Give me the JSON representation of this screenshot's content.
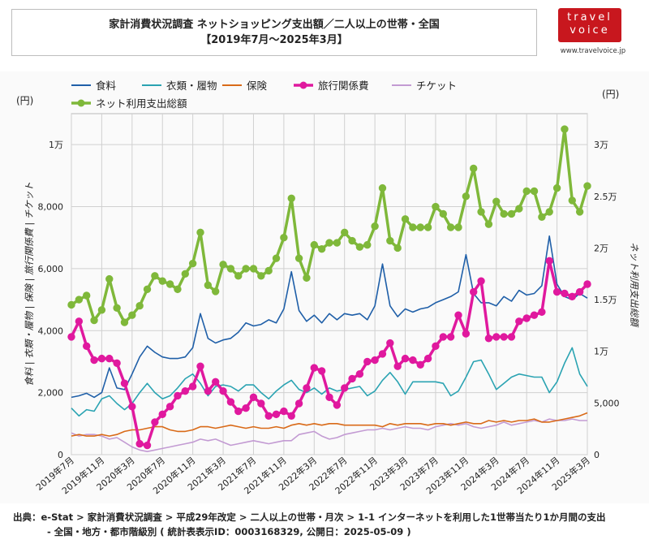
{
  "header": {
    "title_line1": "家計消費状況調査 ネットショッピング支出額／二人以上の世帯・全国",
    "title_line2": "【2019年7月～2025年3月】"
  },
  "logo": {
    "line1": "travel",
    "line2": "voice",
    "url": "www.travelvoice.jp"
  },
  "footer": {
    "source_line1": "出典：e-Stat > 家計消費状況調査 > 平成29年改定 > 二人以上の世帯・月次 > 1-1 インターネットを利用した1世帯当たり1か月間の支出",
    "source_line2": "- 全国・地方・都市階級別 ( 統計表表示ID：0003168329, 公開日：2025-05-09 )"
  },
  "colors": {
    "food": "#1f5fa8",
    "clothing": "#2aa3b2",
    "insurance": "#d96a18",
    "travel": "#e0199e",
    "ticket": "#c39bd3",
    "net_total": "#7fb83a",
    "grid": "#d0d0d0"
  },
  "chart_data": {
    "type": "line",
    "x_start": "2019-07",
    "x_tick_labels": [
      "2019年7月",
      "2019年11月",
      "2020年3月",
      "2020年7月",
      "2020年11月",
      "2021年3月",
      "2021年7月",
      "2021年11月",
      "2022年3月",
      "2022年7月",
      "2022年11月",
      "2023年3月",
      "2023年7月",
      "2023年11月",
      "2024年3月",
      "2024年7月",
      "2024年11月",
      "2025年3月"
    ],
    "y_left": {
      "label": "食料 | 衣類・履物 | 保険 | 旅行関係費 | チケット",
      "unit": "(円)",
      "ylim": [
        0,
        11000
      ],
      "ticks": [
        0,
        2000,
        4000,
        6000,
        8000,
        10000
      ],
      "tick_labels": [
        "0",
        "2,000",
        "4,000",
        "6,000",
        "8,000",
        "1万"
      ]
    },
    "y_right": {
      "label": "ネット利用支出総額",
      "unit": "(円)",
      "ylim": [
        0,
        33000
      ],
      "ticks": [
        0,
        5000,
        10000,
        15000,
        20000,
        25000,
        30000
      ],
      "tick_labels": [
        "0",
        "5,000",
        "1万",
        "1.5万",
        "2万",
        "2.5万",
        "3万"
      ]
    },
    "grid": true,
    "legend_position": "top",
    "series": [
      {
        "name": "食料",
        "key": "food",
        "axis": "left",
        "markers": false,
        "values": [
          1850,
          1900,
          1980,
          1850,
          2000,
          2800,
          2150,
          2100,
          2600,
          3150,
          3500,
          3300,
          3150,
          3100,
          3100,
          3150,
          3450,
          4550,
          3750,
          3600,
          3700,
          3750,
          3950,
          4250,
          4150,
          4200,
          4350,
          4250,
          4700,
          5900,
          4650,
          4300,
          4500,
          4250,
          4550,
          4350,
          4550,
          4500,
          4550,
          4350,
          4800,
          6150,
          4800,
          4450,
          4700,
          4600,
          4700,
          4750,
          4900,
          5000,
          5100,
          5250,
          6450,
          5200,
          4900,
          4900,
          4800,
          5100,
          4950,
          5300,
          5150,
          5200,
          5450,
          7050,
          5500,
          5100,
          5000,
          5200,
          5050
        ]
      },
      {
        "name": "衣類・履物",
        "key": "clothing",
        "axis": "left",
        "markers": false,
        "values": [
          1500,
          1250,
          1450,
          1400,
          1800,
          1900,
          1650,
          1450,
          1650,
          2000,
          2300,
          2000,
          1800,
          1900,
          2150,
          2450,
          2600,
          2300,
          1900,
          2200,
          2250,
          2200,
          2050,
          2250,
          2250,
          2000,
          1800,
          2050,
          2250,
          2400,
          2100,
          2000,
          2150,
          1950,
          2150,
          2050,
          2100,
          2150,
          2200,
          1900,
          2050,
          2400,
          2650,
          2350,
          1950,
          2350,
          2350,
          2350,
          2350,
          2300,
          1900,
          2050,
          2500,
          3000,
          3050,
          2600,
          2100,
          2300,
          2500,
          2600,
          2550,
          2500,
          2500,
          2000,
          2350,
          2950,
          3450,
          2600,
          2200
        ]
      },
      {
        "name": "保険",
        "key": "insurance",
        "axis": "left",
        "markers": false,
        "values": [
          600,
          650,
          600,
          600,
          650,
          600,
          650,
          750,
          800,
          800,
          850,
          900,
          900,
          800,
          750,
          750,
          800,
          900,
          900,
          850,
          900,
          950,
          900,
          850,
          900,
          850,
          850,
          900,
          850,
          950,
          1000,
          950,
          1000,
          950,
          1000,
          1000,
          950,
          950,
          950,
          950,
          950,
          900,
          1000,
          950,
          1000,
          1000,
          1000,
          950,
          1000,
          1000,
          950,
          1000,
          1050,
          1000,
          1000,
          1100,
          1050,
          1100,
          1050,
          1100,
          1100,
          1150,
          1050,
          1050,
          1100,
          1150,
          1200,
          1250,
          1350
        ]
      },
      {
        "name": "旅行関係費",
        "key": "travel",
        "axis": "left",
        "markers": true,
        "values": [
          3800,
          4300,
          3500,
          3050,
          3100,
          3100,
          2950,
          2300,
          1550,
          350,
          300,
          1050,
          1300,
          1550,
          1900,
          2050,
          2200,
          2850,
          2050,
          2350,
          2050,
          1700,
          1400,
          1500,
          1850,
          1650,
          1250,
          1300,
          1400,
          1250,
          1650,
          2150,
          2800,
          2700,
          1850,
          1600,
          2150,
          2450,
          2600,
          3000,
          3050,
          3250,
          3600,
          2850,
          3100,
          3050,
          2900,
          3100,
          3500,
          3800,
          3800,
          4500,
          3900,
          5250,
          5600,
          3750,
          3800,
          3800,
          3800,
          4300,
          4400,
          4500,
          4600,
          6250,
          5250,
          5200,
          5100,
          5250,
          5500
        ]
      },
      {
        "name": "チケット",
        "key": "ticket",
        "axis": "left",
        "markers": false,
        "values": [
          700,
          600,
          650,
          650,
          600,
          500,
          550,
          400,
          250,
          150,
          100,
          150,
          200,
          250,
          300,
          350,
          400,
          500,
          450,
          500,
          400,
          300,
          350,
          400,
          450,
          400,
          350,
          400,
          450,
          450,
          650,
          700,
          750,
          600,
          500,
          550,
          650,
          700,
          750,
          800,
          800,
          850,
          800,
          850,
          900,
          850,
          850,
          800,
          900,
          950,
          1000,
          950,
          1000,
          900,
          850,
          900,
          950,
          1050,
          950,
          1000,
          1050,
          1100,
          1050,
          1150,
          1100,
          1100,
          1150,
          1100,
          1100
        ]
      },
      {
        "name": "ネット利用支出総額",
        "key": "net_total",
        "axis": "right",
        "markers": true,
        "values": [
          14500,
          15000,
          15400,
          13000,
          14000,
          17000,
          14200,
          12800,
          13500,
          14400,
          16000,
          17300,
          16800,
          16500,
          16000,
          17500,
          18500,
          21500,
          16400,
          15800,
          18400,
          18000,
          17300,
          18000,
          18000,
          17300,
          17800,
          19000,
          21000,
          24800,
          19000,
          17100,
          20300,
          19900,
          20500,
          20500,
          21500,
          20700,
          20100,
          20300,
          22100,
          25800,
          20700,
          20000,
          22800,
          22000,
          22000,
          22000,
          24000,
          23300,
          22000,
          22000,
          25000,
          27700,
          23500,
          22300,
          24500,
          23300,
          23300,
          23800,
          25500,
          25500,
          23000,
          23500,
          25800,
          31500,
          24600,
          23500,
          26000
        ]
      }
    ]
  }
}
